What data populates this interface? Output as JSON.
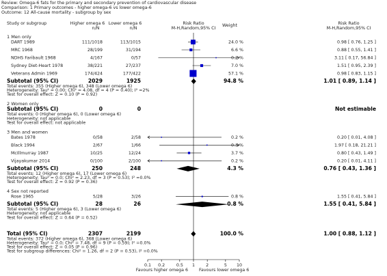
{
  "header": {
    "review": "Review: Omega-6 fats for the primary and secondary prevention of cardiovascular disease",
    "comparison": "Comparison: 1 Primary outcomes - higher omega-6 vs lower omega-6",
    "outcome": "Outcome: 12 All-cause mortality - subgroup by sex"
  },
  "columns": {
    "study": "Study or subgroup",
    "higher": "Higher omega 6",
    "higher_unit": "n/N",
    "lower": "Lower omega 6",
    "lower_unit": "n/N",
    "plot": "Risk Ratio",
    "plot_method": "M-H,Random,95% CI",
    "weight": "Weight",
    "rr": "Risk Ratio",
    "rr_method": "M-H,Random,95% CI"
  },
  "chart_data": {
    "type": "forest",
    "log": true,
    "xlim": [
      0.1,
      10
    ],
    "xticks": [
      0.1,
      0.2,
      0.5,
      1,
      2,
      5,
      10
    ],
    "xlabel_left": "Favours higher omega 6",
    "xlabel_right": "Favours lower omega 6",
    "color": "#0000cc",
    "groups": [
      {
        "title": "1 Men only",
        "studies": [
          {
            "name": "DART 1989",
            "higher": "111/1018",
            "lower": "113/1015",
            "weight": 24.0,
            "weight_label": "24.0 %",
            "rr": 0.98,
            "lo": 0.76,
            "hi": 1.25,
            "ci_label": "0.98 [ 0.76, 1.25 ]"
          },
          {
            "name": "MRC 1968",
            "higher": "28/199",
            "lower": "31/194",
            "weight": 6.6,
            "weight_label": "6.6 %",
            "rr": 0.88,
            "lo": 0.55,
            "hi": 1.41,
            "ci_label": "0.88 [ 0.55, 1.41 ]"
          },
          {
            "name": "NDHS Faribault 1968",
            "higher": "4/167",
            "lower": "0/57",
            "weight": 0.2,
            "weight_label": "0.2 %",
            "rr": 3.11,
            "lo": 0.17,
            "hi": 56.84,
            "ci_label": "3.11 [ 0.17, 56.84 ]"
          },
          {
            "name": "Sydney Diet-Heart 1978",
            "higher": "38/221",
            "lower": "27/237",
            "weight": 7.0,
            "weight_label": "7.0 %",
            "rr": 1.51,
            "lo": 0.95,
            "hi": 2.39,
            "ci_label": "1.51 [ 0.95, 2.39 ]"
          },
          {
            "name": "Veterans Admin 1969",
            "higher": "174/424",
            "lower": "177/422",
            "weight": 57.1,
            "weight_label": "57.1 %",
            "rr": 0.98,
            "lo": 0.83,
            "hi": 1.15,
            "ci_label": "0.98 [ 0.83, 1.15 ]"
          }
        ],
        "subtotal": {
          "name": "Subtotal (95% CI)",
          "higher": 2029,
          "lower": 1925,
          "weight": 94.8,
          "weight_label": "94.8 %",
          "rr": 1.01,
          "lo": 0.89,
          "hi": 1.14,
          "ci_label": "1.01 [ 0.89, 1.14 ]"
        },
        "notes": [
          "Total events: 355 (Higher omega 6), 348 (Lower omega 6)",
          "Heterogeneity: Tau² = 0.00; Chi² = 4.08, df = 4 (P = 0.40); I² =2%",
          "Test for overall effect: Z = 0.10 (P = 0.92)"
        ]
      },
      {
        "title": "2 Women only",
        "studies": [],
        "subtotal": {
          "name": "Subtotal (95% CI)",
          "higher": 0,
          "lower": 0,
          "ci_label": "Not estimable"
        },
        "notes": [
          "Total events: 0 (Higher omega 6), 0 (Lower omega 6)",
          "Heterogeneity: not applicable",
          "Test for overall effect: not applicable"
        ]
      },
      {
        "title": "3 Men and women",
        "studies": [
          {
            "name": "Bates 1978",
            "higher": "0/58",
            "lower": "2/58",
            "weight": 0.2,
            "weight_label": "0.2 %",
            "rr": 0.2,
            "lo": 0.01,
            "hi": 4.08,
            "ci_label": "0.20 [ 0.01, 4.08 ]"
          },
          {
            "name": "Black 1994",
            "higher": "2/67",
            "lower": "1/66",
            "weight": 0.3,
            "weight_label": "0.3 %",
            "rr": 1.97,
            "lo": 0.18,
            "hi": 21.21,
            "ci_label": "1.97 [ 0.18, 21.21 ]"
          },
          {
            "name": "McIllmurray 1987",
            "higher": "10/25",
            "lower": "12/24",
            "weight": 3.7,
            "weight_label": "3.7 %",
            "rr": 0.8,
            "lo": 0.43,
            "hi": 1.49,
            "ci_label": "0.80 [ 0.43, 1.49 ]"
          },
          {
            "name": "Vijayakumar 2014",
            "higher": "0/100",
            "lower": "2/100",
            "weight": 0.2,
            "weight_label": "0.2 %",
            "rr": 0.2,
            "lo": 0.01,
            "hi": 4.11,
            "ci_label": "0.20 [ 0.01, 4.11 ]"
          }
        ],
        "subtotal": {
          "name": "Subtotal (95% CI)",
          "higher": 250,
          "lower": 248,
          "weight": 4.3,
          "weight_label": "4.3 %",
          "rr": 0.76,
          "lo": 0.43,
          "hi": 1.36,
          "ci_label": "0.76 [ 0.43, 1.36 ]"
        },
        "notes": [
          "Total events: 12 (Higher omega 6), 17 (Lower omega 6)",
          "Heterogeneity: Tau² = 0.0; Chi² = 2.23, df = 3 (P = 0.53); I² =0.0%",
          "Test for overall effect: Z = 0.92 (P = 0.36)"
        ]
      },
      {
        "title": "4 Sex not reported",
        "studies": [
          {
            "name": "Rose 1965",
            "higher": "5/28",
            "lower": "3/26",
            "weight": 0.8,
            "weight_label": "0.8 %",
            "rr": 1.55,
            "lo": 0.41,
            "hi": 5.84,
            "ci_label": "1.55 [ 0.41, 5.84 ]"
          }
        ],
        "subtotal": {
          "name": "Subtotal (95% CI)",
          "higher": 28,
          "lower": 26,
          "weight": 0.8,
          "weight_label": "0.8 %",
          "rr": 1.55,
          "lo": 0.41,
          "hi": 5.84,
          "ci_label": "1.55 [ 0.41, 5.84 ]"
        },
        "notes": [
          "Total events: 5 (Higher omega 6), 3 (Lower omega 6)",
          "Heterogeneity: not applicable",
          "Test for overall effect: Z = 0.64 (P = 0.52)"
        ]
      }
    ],
    "total": {
      "name": "Total (95% CI)",
      "higher": 2307,
      "lower": 2199,
      "weight": 100.0,
      "weight_label": "100.0 %",
      "rr": 1.0,
      "lo": 0.88,
      "hi": 1.12,
      "ci_label": "1.00 [ 0.88, 1.12 ]",
      "notes": [
        "Total events: 372 (Higher omega 6), 368 (Lower omega 6)",
        "Heterogeneity: Tau² = 0.0; Chi² = 7.48, df = 9 (P = 0.59); I² =0.0%",
        "Test for overall effect: Z = 0.05 (P = 0.96)",
        "Test for subgroup differences: Chi² = 1.26, df = 2 (P = 0.53), I² =0.0%"
      ]
    }
  }
}
